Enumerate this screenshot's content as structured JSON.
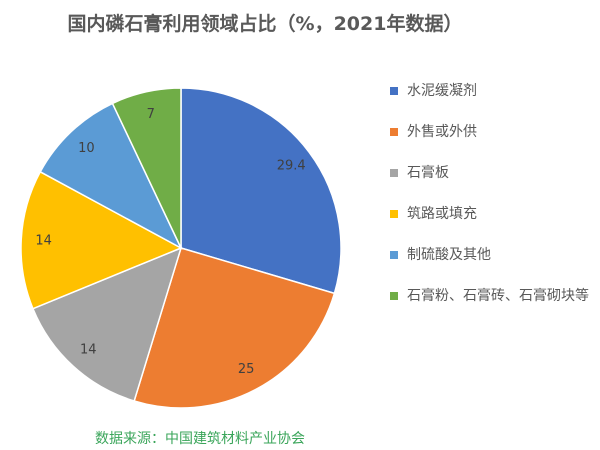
{
  "chart_data": {
    "type": "pie",
    "title": "国内磷石膏利用领域占比（%，2021年数据）",
    "categories": [
      "水泥缓凝剂",
      "外售或外供",
      "石膏板",
      "筑路或填充",
      "制硫酸及其他",
      "石膏粉、石膏砖、石膏砌块等"
    ],
    "values": [
      29.4,
      25,
      14,
      14,
      10,
      7
    ],
    "labels": [
      "29.4",
      "25",
      "14",
      "14",
      "10",
      "7"
    ],
    "colors": [
      "#4472c4",
      "#ed7d31",
      "#a5a5a5",
      "#ffc000",
      "#5b9bd5",
      "#70ad47"
    ],
    "legend_position": "right",
    "start_angle": "top, clockwise"
  },
  "source": "数据来源：中国建筑材料产业协会"
}
